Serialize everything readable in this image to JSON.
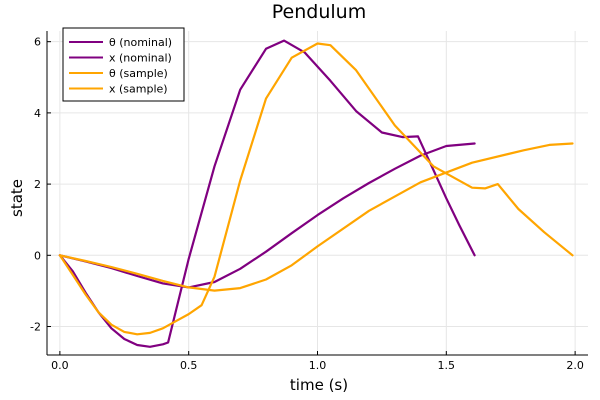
{
  "chart_data": {
    "type": "line",
    "title": "Pendulum",
    "xlabel": "time (s)",
    "ylabel": "state",
    "xlim": [
      -0.05,
      2.05
    ],
    "ylim": [
      -2.8,
      6.3
    ],
    "xticks": [
      0.0,
      0.5,
      1.0,
      1.5,
      2.0
    ],
    "xtick_labels": [
      "0.0",
      "0.5",
      "1.0",
      "1.5",
      "2.0"
    ],
    "yticks": [
      -2,
      0,
      2,
      4,
      6
    ],
    "ytick_labels": [
      "-2",
      "0",
      "2",
      "4",
      "6"
    ],
    "grid": true,
    "legend_position": "top-left",
    "series": [
      {
        "name": "θ (nominal)",
        "color": "#800080",
        "x": [
          0,
          0.1,
          0.2,
          0.3,
          0.4,
          0.5,
          0.6,
          0.7,
          0.8,
          0.9,
          1.0,
          1.1,
          1.2,
          1.3,
          1.4,
          1.5,
          1.61
        ],
        "y": [
          0,
          -0.17,
          -0.36,
          -0.58,
          -0.79,
          -0.9,
          -0.75,
          -0.38,
          0.1,
          0.62,
          1.13,
          1.6,
          2.03,
          2.43,
          2.8,
          3.07,
          3.14
        ]
      },
      {
        "name": "x (nominal)",
        "color": "#800080",
        "x": [
          0,
          0.05,
          0.1,
          0.15,
          0.2,
          0.25,
          0.3,
          0.35,
          0.4,
          0.42,
          0.5,
          0.6,
          0.7,
          0.8,
          0.87,
          0.95,
          1.05,
          1.15,
          1.25,
          1.33,
          1.39,
          1.45,
          1.5,
          1.55,
          1.61
        ],
        "y": [
          0,
          -0.45,
          -1.05,
          -1.6,
          -2.05,
          -2.35,
          -2.52,
          -2.57,
          -2.5,
          -2.45,
          -0.1,
          2.5,
          4.65,
          5.8,
          6.03,
          5.7,
          4.9,
          4.05,
          3.45,
          3.32,
          3.34,
          2.4,
          1.6,
          0.85,
          0.0
        ]
      },
      {
        "name": "θ (sample)",
        "color": "#FFA500",
        "x": [
          0,
          0.1,
          0.2,
          0.3,
          0.4,
          0.5,
          0.6,
          0.7,
          0.8,
          0.9,
          1.0,
          1.2,
          1.4,
          1.6,
          1.8,
          1.9,
          1.99
        ],
        "y": [
          0,
          -0.16,
          -0.33,
          -0.52,
          -0.72,
          -0.9,
          -0.99,
          -0.92,
          -0.68,
          -0.28,
          0.25,
          1.25,
          2.05,
          2.6,
          2.95,
          3.1,
          3.14
        ]
      },
      {
        "name": "x (sample)",
        "color": "#FFA500",
        "x": [
          0,
          0.05,
          0.1,
          0.15,
          0.2,
          0.25,
          0.3,
          0.35,
          0.4,
          0.45,
          0.5,
          0.55,
          0.6,
          0.7,
          0.8,
          0.9,
          1.0,
          1.05,
          1.15,
          1.3,
          1.45,
          1.6,
          1.65,
          1.7,
          1.78,
          1.88,
          1.99
        ],
        "y": [
          0,
          -0.55,
          -1.1,
          -1.6,
          -1.95,
          -2.15,
          -2.22,
          -2.18,
          -2.05,
          -1.85,
          -1.65,
          -1.4,
          -0.6,
          2.1,
          4.4,
          5.55,
          5.95,
          5.9,
          5.2,
          3.65,
          2.5,
          1.9,
          1.88,
          2.0,
          1.3,
          0.65,
          0.0
        ]
      }
    ]
  }
}
